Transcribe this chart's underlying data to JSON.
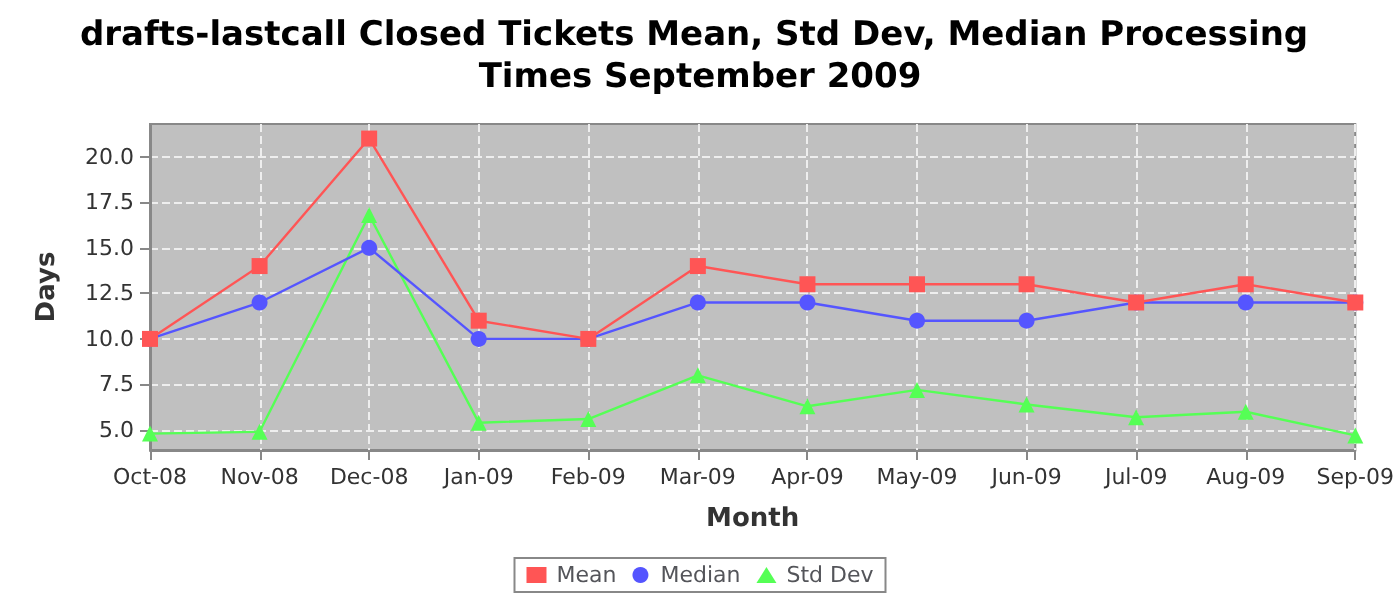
{
  "chart_data": {
    "type": "line",
    "title": "drafts-lastcall Closed Tickets Mean, Std Dev, Median Processing Times September 2009",
    "xlabel": "Month",
    "ylabel": "Days",
    "categories": [
      "Oct-08",
      "Nov-08",
      "Dec-08",
      "Jan-09",
      "Feb-09",
      "Mar-09",
      "Apr-09",
      "May-09",
      "Jun-09",
      "Jul-09",
      "Aug-09",
      "Sep-09"
    ],
    "series": [
      {
        "name": "Mean",
        "color": "#ff5555",
        "marker": "square",
        "values": [
          10,
          14,
          21,
          11,
          10,
          14,
          13,
          13,
          13,
          12,
          13,
          12
        ]
      },
      {
        "name": "Median",
        "color": "#5555ff",
        "marker": "circle",
        "values": [
          10,
          12,
          15,
          10,
          10,
          12,
          12,
          11,
          11,
          12,
          12,
          12
        ]
      },
      {
        "name": "Std Dev",
        "color": "#55ff55",
        "marker": "triangle",
        "values": [
          4.8,
          4.9,
          16.8,
          5.4,
          5.6,
          8.0,
          6.3,
          7.2,
          6.4,
          5.7,
          6.0,
          4.7
        ]
      }
    ],
    "ylim": [
      3.9,
      21.8
    ],
    "yticks": [
      {
        "value": 5,
        "label": "5.0"
      },
      7.5,
      {
        "value": 10,
        "label": "10.0"
      },
      12.5,
      {
        "value": 15,
        "label": "15.0"
      },
      17.5,
      {
        "value": 20,
        "label": "20.0"
      }
    ],
    "grid": true,
    "legend": "bottom"
  }
}
